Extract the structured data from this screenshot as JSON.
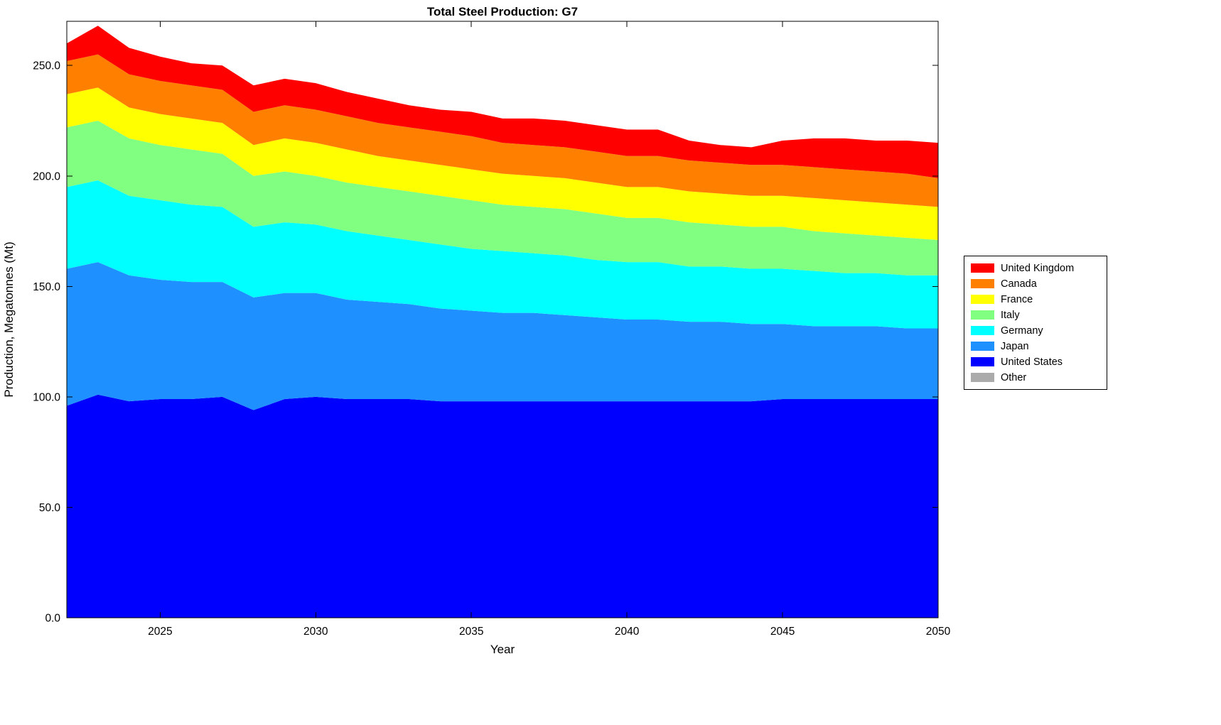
{
  "chart_data": {
    "type": "area",
    "stacked": true,
    "title": "Total Steel Production: G7",
    "xlabel": "Year",
    "ylabel": "Production, Megatonnes (Mt)",
    "xlim": [
      2022,
      2050
    ],
    "ylim": [
      0,
      270
    ],
    "xticks": [
      2025,
      2030,
      2035,
      2040,
      2045,
      2050
    ],
    "yticks": [
      0,
      50,
      100,
      150,
      200,
      250
    ],
    "ytick_labels": [
      "0.0",
      "50.0",
      "100.0",
      "150.0",
      "200.0",
      "250.0"
    ],
    "grid": false,
    "x": [
      2022,
      2023,
      2024,
      2025,
      2026,
      2027,
      2028,
      2029,
      2030,
      2031,
      2032,
      2033,
      2034,
      2035,
      2036,
      2037,
      2038,
      2039,
      2040,
      2041,
      2042,
      2043,
      2044,
      2045,
      2046,
      2047,
      2048,
      2049,
      2050
    ],
    "series": [
      {
        "name": "United States",
        "color": "#0000FF",
        "values": [
          96,
          101,
          98,
          99,
          99,
          100,
          94,
          99,
          100,
          99,
          99,
          99,
          98,
          98,
          98,
          98,
          98,
          98,
          98,
          98,
          98,
          98,
          98,
          99,
          99,
          99,
          99,
          99,
          99
        ]
      },
      {
        "name": "Japan",
        "color": "#1E90FF",
        "values": [
          62,
          60,
          57,
          54,
          53,
          52,
          51,
          48,
          47,
          45,
          44,
          43,
          42,
          41,
          40,
          40,
          39,
          38,
          37,
          37,
          36,
          36,
          35,
          34,
          33,
          33,
          33,
          32,
          32
        ]
      },
      {
        "name": "Germany",
        "color": "#00FFFF",
        "values": [
          37,
          37,
          36,
          36,
          35,
          34,
          32,
          32,
          31,
          31,
          30,
          29,
          29,
          28,
          28,
          27,
          27,
          26,
          26,
          26,
          25,
          25,
          25,
          25,
          25,
          24,
          24,
          24,
          24
        ]
      },
      {
        "name": "Italy",
        "color": "#80FF80",
        "values": [
          27,
          27,
          26,
          25,
          25,
          24,
          23,
          23,
          22,
          22,
          22,
          22,
          22,
          22,
          21,
          21,
          21,
          21,
          20,
          20,
          20,
          19,
          19,
          19,
          18,
          18,
          17,
          17,
          16
        ]
      },
      {
        "name": "France",
        "color": "#FFFF00",
        "values": [
          15,
          15,
          14,
          14,
          14,
          14,
          14,
          15,
          15,
          15,
          14,
          14,
          14,
          14,
          14,
          14,
          14,
          14,
          14,
          14,
          14,
          14,
          14,
          14,
          15,
          15,
          15,
          15,
          15
        ]
      },
      {
        "name": "Canada",
        "color": "#FF8000",
        "values": [
          15,
          15,
          15,
          15,
          15,
          15,
          15,
          15,
          15,
          15,
          15,
          15,
          15,
          15,
          14,
          14,
          14,
          14,
          14,
          14,
          14,
          14,
          14,
          14,
          14,
          14,
          14,
          14,
          13
        ]
      },
      {
        "name": "United Kingdom",
        "color": "#FF0000",
        "values": [
          8,
          13,
          12,
          11,
          10,
          11,
          12,
          12,
          12,
          11,
          11,
          10,
          10,
          11,
          11,
          12,
          12,
          12,
          12,
          12,
          9,
          8,
          8,
          11,
          13,
          14,
          14,
          15,
          16
        ]
      },
      {
        "name": "Other",
        "color": "#ABABAB",
        "values": [
          0,
          0,
          0,
          0,
          0,
          0,
          0,
          0,
          0,
          0,
          0,
          0,
          0,
          0,
          0,
          0,
          0,
          0,
          0,
          0,
          0,
          0,
          0,
          0,
          0,
          0,
          0,
          0,
          0
        ]
      }
    ],
    "legend": {
      "position": "right",
      "entries": [
        "United Kingdom",
        "Canada",
        "France",
        "Italy",
        "Germany",
        "Japan",
        "United States",
        "Other"
      ]
    }
  }
}
